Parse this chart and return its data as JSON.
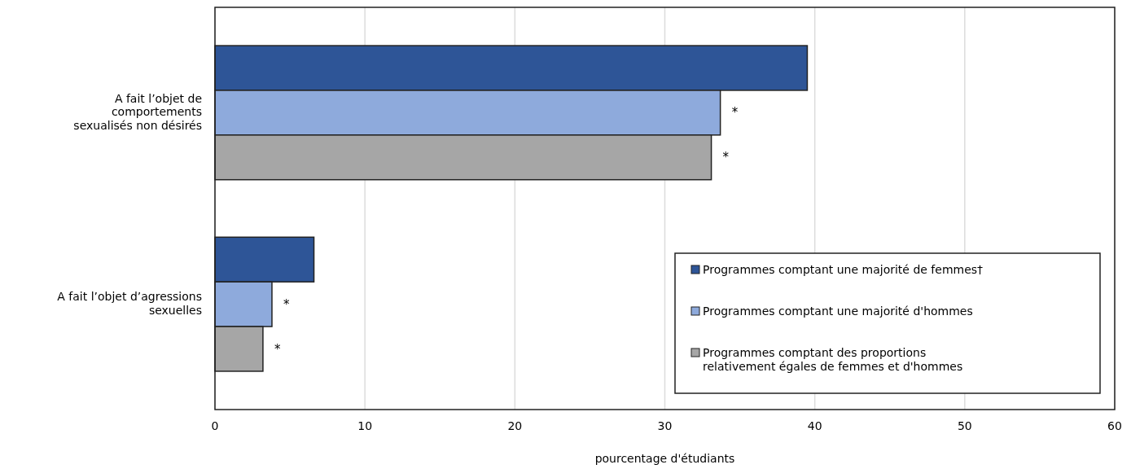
{
  "chart_data": {
    "type": "bar",
    "orientation": "horizontal",
    "categories": [
      "A fait l’objet de\ncomportements\nsexualisés non désirés",
      "A fait l’objet d’agressions\nsexuelles"
    ],
    "series": [
      {
        "name": "Programmes comptant une majorité de femmes†",
        "color": "#2e5597",
        "values": [
          39.5,
          6.6
        ]
      },
      {
        "name": "Programmes comptant une majorité d'hommes",
        "color": "#8eaadc",
        "values": [
          33.7,
          3.8
        ],
        "value_labels": [
          "*",
          "*"
        ]
      },
      {
        "name": "Programmes comptant des proportions\nrelativement égales de femmes et d'hommes",
        "color": "#a6a6a6",
        "values": [
          33.1,
          3.2
        ],
        "value_labels": [
          "*",
          "*"
        ]
      }
    ],
    "xlabel": "pourcentage d'étudiants",
    "xlim": [
      0,
      60
    ],
    "xticks": [
      0,
      10,
      20,
      30,
      40,
      50,
      60
    ],
    "grid": "x",
    "legend": "bottom right"
  }
}
